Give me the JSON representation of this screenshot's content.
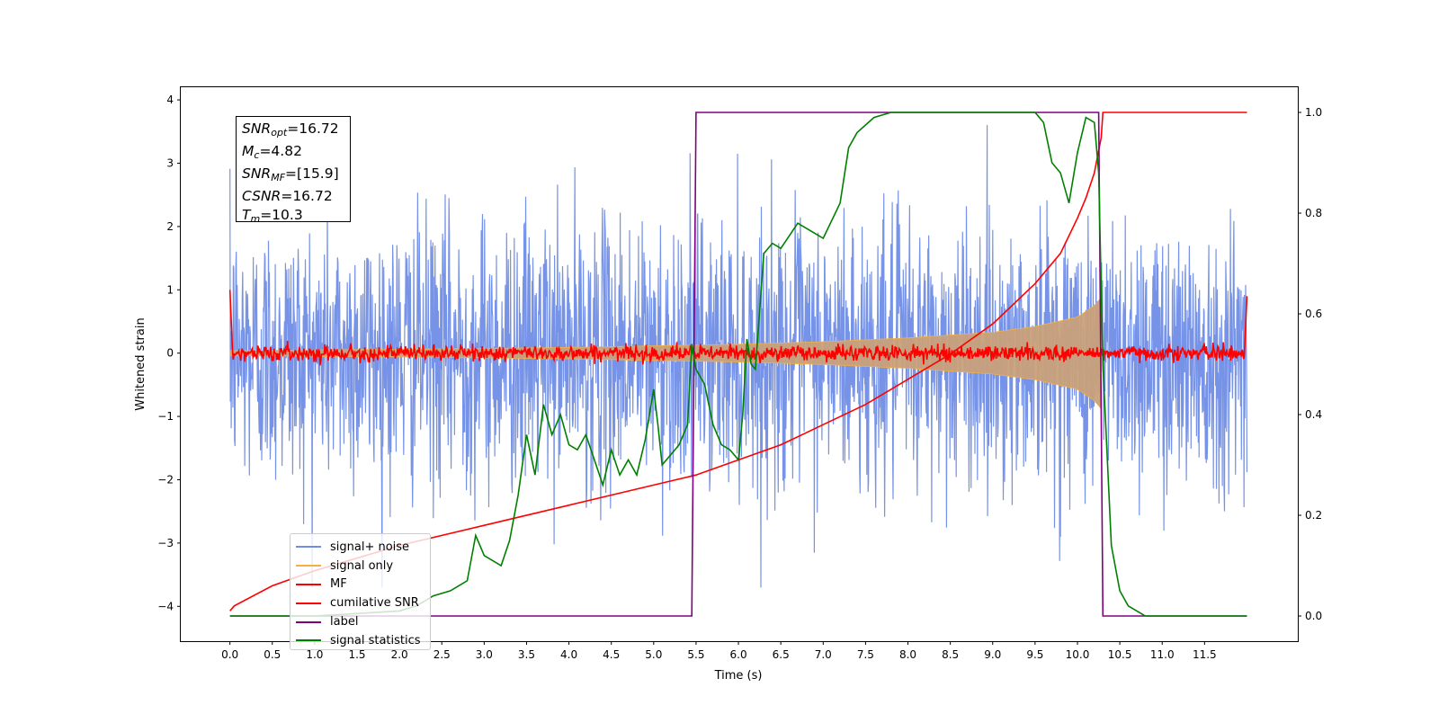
{
  "chart_data": {
    "type": "line",
    "xlabel": "Time (s)",
    "ylabel": "Whitened strain",
    "xlim": [
      -0.58,
      12.6
    ],
    "ylim": [
      -4.55,
      4.2
    ],
    "ylim_right": [
      -0.05,
      1.05
    ],
    "grid": false,
    "legend_position": "lower-left",
    "x_ticks": [
      "0.0",
      "0.5",
      "1.0",
      "1.5",
      "2.0",
      "2.5",
      "3.0",
      "3.5",
      "4.0",
      "4.5",
      "5.0",
      "5.5",
      "6.0",
      "6.5",
      "7.0",
      "7.5",
      "8.0",
      "8.5",
      "9.0",
      "9.5",
      "10.0",
      "10.5",
      "11.0",
      "11.5"
    ],
    "y_ticks_left": [
      "4",
      "3",
      "2",
      "1",
      "0",
      "−1",
      "−2",
      "−3",
      "−4"
    ],
    "y_ticks_right": [
      "1.0",
      "0.8",
      "0.6",
      "0.4",
      "0.2",
      "0.0"
    ],
    "annotations": {
      "snr_opt": {
        "label": "SNR",
        "sub": "opt",
        "value": "=16.72"
      },
      "mc": {
        "label": "M",
        "sub": "c",
        "value": "=4.82"
      },
      "snr_mf": {
        "label": "SNR",
        "sub": "MF",
        "value": "=[15.9]"
      },
      "csnr": {
        "label": "CSNR",
        "sub": "",
        "value": "=16.72"
      },
      "tm": {
        "label": "T",
        "sub": "m",
        "value": "=10.3"
      }
    },
    "series": [
      {
        "name": "signal+ noise",
        "color": "#6f8de6",
        "axis": "left",
        "kind": "noise",
        "amplitude_std": 1.0,
        "x_range": [
          0,
          12.0
        ]
      },
      {
        "name": "signal only",
        "color": "#f5b041",
        "axis": "left",
        "kind": "chirp_envelope",
        "envelope_x": [
          0,
          2,
          4,
          6,
          7,
          8,
          9,
          9.5,
          10,
          10.2,
          10.28
        ],
        "envelope_y": [
          0.04,
          0.06,
          0.09,
          0.14,
          0.18,
          0.24,
          0.33,
          0.42,
          0.57,
          0.75,
          0.88
        ]
      },
      {
        "name": "MF",
        "color": "#ff0000",
        "axis": "left",
        "kind": "noise_small",
        "amplitude_std": 0.06,
        "x_range": [
          0,
          12.0
        ]
      },
      {
        "name": "cumilative SNR",
        "color": "#ff0000",
        "axis": "right",
        "x": [
          0,
          0.05,
          0.5,
          1.0,
          2.0,
          3.0,
          4.0,
          5.0,
          5.5,
          6.0,
          6.5,
          7.0,
          7.5,
          8.0,
          8.5,
          9.0,
          9.5,
          9.8,
          10.0,
          10.1,
          10.2,
          10.28,
          10.3,
          12.0
        ],
        "y": [
          0.01,
          0.02,
          0.06,
          0.09,
          0.14,
          0.18,
          0.22,
          0.26,
          0.28,
          0.31,
          0.34,
          0.38,
          0.42,
          0.47,
          0.52,
          0.58,
          0.66,
          0.72,
          0.79,
          0.83,
          0.88,
          0.95,
          1.0,
          1.0
        ]
      },
      {
        "name": "label",
        "color": "#800080",
        "axis": "right",
        "x": [
          0,
          5.45,
          5.5,
          10.25,
          10.3,
          11.0,
          12.0
        ],
        "y": [
          0,
          0,
          1,
          1,
          0,
          0,
          0
        ]
      },
      {
        "name": "signal statistics",
        "color": "#008000",
        "axis": "right",
        "x": [
          0,
          1.0,
          2.0,
          2.2,
          2.4,
          2.6,
          2.8,
          2.9,
          3.0,
          3.2,
          3.3,
          3.4,
          3.5,
          3.6,
          3.7,
          3.8,
          3.9,
          4.0,
          4.1,
          4.2,
          4.3,
          4.4,
          4.5,
          4.6,
          4.7,
          4.8,
          4.9,
          5.0,
          5.05,
          5.1,
          5.2,
          5.3,
          5.4,
          5.45,
          5.5,
          5.6,
          5.7,
          5.8,
          5.9,
          6.0,
          6.05,
          6.1,
          6.15,
          6.2,
          6.3,
          6.4,
          6.5,
          6.7,
          6.9,
          7.0,
          7.2,
          7.3,
          7.4,
          7.6,
          7.8,
          8.0,
          8.5,
          9.0,
          9.5,
          9.6,
          9.7,
          9.8,
          9.9,
          10.0,
          10.1,
          10.2,
          10.25,
          10.3,
          10.4,
          10.5,
          10.6,
          10.7,
          10.8,
          11.0,
          12.0
        ],
        "y": [
          0,
          0.0,
          0.01,
          0.02,
          0.04,
          0.05,
          0.07,
          0.16,
          0.12,
          0.1,
          0.15,
          0.24,
          0.36,
          0.28,
          0.42,
          0.36,
          0.4,
          0.34,
          0.33,
          0.36,
          0.31,
          0.26,
          0.33,
          0.28,
          0.31,
          0.28,
          0.35,
          0.45,
          0.38,
          0.3,
          0.32,
          0.34,
          0.38,
          0.54,
          0.49,
          0.46,
          0.38,
          0.34,
          0.33,
          0.31,
          0.4,
          0.55,
          0.5,
          0.49,
          0.72,
          0.74,
          0.73,
          0.78,
          0.76,
          0.75,
          0.82,
          0.93,
          0.96,
          0.99,
          1.0,
          1.0,
          1.0,
          1.0,
          1.0,
          0.98,
          0.9,
          0.88,
          0.82,
          0.92,
          0.99,
          0.98,
          0.88,
          0.5,
          0.14,
          0.05,
          0.02,
          0.01,
          0.0,
          0.0,
          0.0
        ]
      }
    ]
  }
}
